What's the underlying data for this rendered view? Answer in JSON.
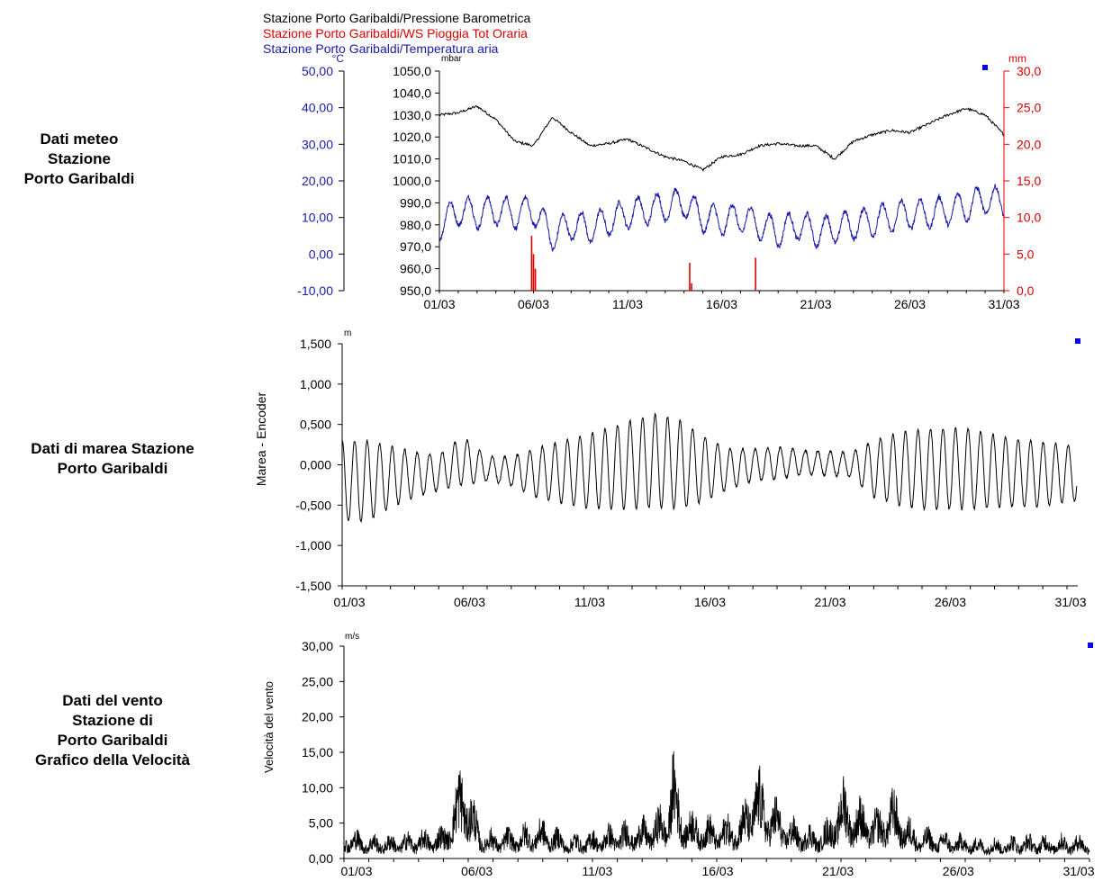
{
  "labels": {
    "meteo": [
      "Dati meteo",
      "Stazione",
      "Porto Garibaldi"
    ],
    "tide": [
      "Dati di marea Stazione",
      "Porto Garibaldi"
    ],
    "wind": [
      "Dati del vento",
      "Stazione di",
      "Porto Garibaldi",
      "Grafico della Velocità"
    ]
  },
  "colors": {
    "pressure": "#000000",
    "rain": "#dd0000",
    "temperature": "#1a1aaa",
    "marker": "#0000ee"
  },
  "chart_data": [
    {
      "id": "meteo",
      "type": "line",
      "legend": [
        "Stazione Porto Garibaldi/Pressione Barometrica",
        "Stazione Porto Garibaldi/WS Pioggia Tot Oraria",
        "Stazione Porto Garibaldi/Temperatura aria"
      ],
      "x_range": [
        "01/03",
        "31/03"
      ],
      "x_ticks": [
        "01/03",
        "06/03",
        "11/03",
        "16/03",
        "21/03",
        "26/03",
        "31/03"
      ],
      "axes": {
        "temperature": {
          "unit": "°C",
          "ylim": [
            -10,
            50
          ],
          "ticks": [
            "50,00",
            "40,00",
            "30,00",
            "20,00",
            "10,00",
            "0,00",
            "-10,00"
          ]
        },
        "pressure": {
          "unit": "mbar",
          "ylim": [
            950,
            1050
          ],
          "ticks": [
            "1050,0",
            "1040,0",
            "1030,0",
            "1020,0",
            "1010,0",
            "1000,0",
            "990,0",
            "980,0",
            "970,0",
            "960,0",
            "950,0"
          ]
        },
        "rain": {
          "unit": "mm",
          "ylim": [
            0,
            30
          ],
          "ticks": [
            "30,0",
            "25,0",
            "20,0",
            "15,0",
            "10,0",
            "5,0",
            "0,0"
          ]
        }
      },
      "series": [
        {
          "axis": "pressure",
          "day": [
            1,
            2,
            3,
            4,
            5,
            6,
            7,
            8,
            9,
            10,
            11,
            12,
            13,
            14,
            15,
            16,
            17,
            18,
            19,
            20,
            21,
            22,
            23,
            24,
            25,
            26,
            27,
            28,
            29,
            30,
            31
          ],
          "values": [
            1030,
            1031,
            1034,
            1028,
            1018,
            1016,
            1029,
            1022,
            1016,
            1017,
            1019,
            1015,
            1011,
            1009,
            1005,
            1011,
            1012,
            1016,
            1017,
            1016,
            1016,
            1010,
            1018,
            1021,
            1023,
            1022,
            1026,
            1030,
            1033,
            1030,
            1021
          ]
        },
        {
          "axis": "temperature",
          "day": [
            1,
            2,
            3,
            4,
            5,
            6,
            7,
            8,
            9,
            10,
            11,
            12,
            13,
            14,
            15,
            16,
            17,
            18,
            19,
            20,
            21,
            22,
            23,
            24,
            25,
            26,
            27,
            28,
            29,
            30,
            31
          ],
          "values": [
            8,
            12,
            11,
            12,
            11,
            12,
            5,
            8,
            7,
            9,
            11,
            12,
            13,
            14,
            10,
            9,
            10,
            8,
            6,
            8,
            6,
            7,
            8,
            9,
            10,
            11,
            11,
            12,
            13,
            15,
            14
          ]
        },
        {
          "axis": "rain",
          "day": [
            5.9,
            6.0,
            6.1,
            14.3,
            14.4,
            17.8
          ],
          "values": [
            7.5,
            5.0,
            3.0,
            3.8,
            1.0,
            4.5
          ]
        }
      ]
    },
    {
      "id": "tide",
      "type": "line",
      "y_unit": "m",
      "y_title": "Marea - Encoder",
      "ylim": [
        -1.5,
        1.5
      ],
      "y_ticks": [
        "1,500",
        "1,000",
        "0,500",
        "0,000",
        "-0,500",
        "-1,000",
        "-1,500"
      ],
      "x_ticks": [
        "01/03",
        "06/03",
        "11/03",
        "16/03",
        "21/03",
        "26/03",
        "31/03"
      ],
      "amplitude_by_day": {
        "day": [
          1,
          2,
          3,
          4,
          5,
          6,
          7,
          8,
          9,
          10,
          11,
          12,
          13,
          14,
          15,
          16,
          17,
          18,
          19,
          20,
          21,
          22,
          23,
          24,
          25,
          26,
          27,
          28,
          29,
          30,
          31
        ],
        "value": [
          0.5,
          0.5,
          0.38,
          0.28,
          0.22,
          0.3,
          0.15,
          0.18,
          0.3,
          0.38,
          0.45,
          0.5,
          0.55,
          0.58,
          0.55,
          0.4,
          0.25,
          0.2,
          0.2,
          0.15,
          0.15,
          0.15,
          0.35,
          0.45,
          0.5,
          0.5,
          0.5,
          0.45,
          0.42,
          0.4,
          0.35
        ]
      },
      "mean_by_day": {
        "day": [
          1,
          2,
          3,
          4,
          5,
          6,
          7,
          8,
          9,
          10,
          11,
          12,
          13,
          14,
          15,
          16,
          17,
          18,
          19,
          20,
          21,
          22,
          23,
          24,
          25,
          26,
          27,
          28,
          29,
          30,
          31
        ],
        "value": [
          -0.2,
          -0.2,
          -0.15,
          -0.12,
          -0.1,
          0.05,
          -0.05,
          -0.08,
          -0.1,
          -0.1,
          -0.08,
          -0.05,
          0,
          0.05,
          0,
          -0.05,
          -0.05,
          0,
          0.02,
          0.03,
          0.02,
          0,
          -0.05,
          -0.05,
          -0.05,
          -0.05,
          -0.05,
          -0.08,
          -0.1,
          -0.12,
          -0.1
        ]
      }
    },
    {
      "id": "wind",
      "type": "line",
      "y_unit": "m/s",
      "y_title": "Velocità del vento",
      "ylim": [
        0,
        30
      ],
      "y_ticks": [
        "30,00",
        "25,00",
        "20,00",
        "15,00",
        "10,00",
        "5,00",
        "0,00"
      ],
      "x_ticks": [
        "01/03",
        "06/03",
        "11/03",
        "16/03",
        "21/03",
        "26/03",
        "31/03"
      ],
      "envelope": {
        "day": [
          1,
          2,
          3,
          4,
          5,
          5.5,
          5.8,
          6,
          6.5,
          7,
          8,
          9,
          10,
          11,
          12,
          13,
          14,
          14.2,
          14.5,
          15,
          16,
          17,
          17.5,
          18,
          19,
          20,
          20.5,
          21,
          21.5,
          22,
          22.5,
          23,
          24,
          25,
          26,
          27,
          28,
          29,
          30,
          31
        ],
        "value": [
          4,
          3,
          3,
          3.5,
          4,
          9,
          14,
          10,
          4,
          3.5,
          4,
          5,
          3,
          3.5,
          4.5,
          5,
          7,
          15,
          8,
          6,
          5,
          6,
          12,
          9,
          5,
          4,
          5,
          10,
          8,
          7,
          6,
          9,
          4,
          3.5,
          3,
          2.5,
          3,
          3,
          3,
          3
        ]
      }
    }
  ]
}
